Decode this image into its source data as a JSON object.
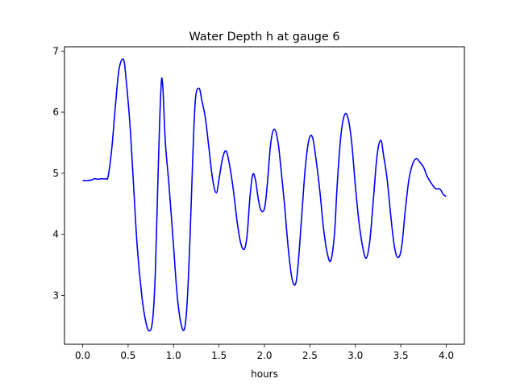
{
  "chart_data": {
    "type": "line",
    "title": "Water Depth h at gauge 6",
    "xlabel": "hours",
    "ylabel": "",
    "xlim": [
      -0.2,
      4.2
    ],
    "ylim": [
      2.2,
      7.07
    ],
    "xticks": [
      0.0,
      0.5,
      1.0,
      1.5,
      2.0,
      2.5,
      3.0,
      3.5,
      4.0
    ],
    "xtick_labels": [
      "0.0",
      "0.5",
      "1.0",
      "1.5",
      "2.0",
      "2.5",
      "3.0",
      "3.5",
      "4.0"
    ],
    "yticks": [
      3,
      4,
      5,
      6,
      7
    ],
    "ytick_labels": [
      "3",
      "4",
      "5",
      "6",
      "7"
    ],
    "grid": false,
    "series": [
      {
        "color": "#0000ff",
        "x": [
          0.0,
          0.05,
          0.1,
          0.13,
          0.17,
          0.2,
          0.25,
          0.28,
          0.32,
          0.36,
          0.4,
          0.45,
          0.48,
          0.52,
          0.56,
          0.6,
          0.65,
          0.69,
          0.73,
          0.77,
          0.8,
          0.83,
          0.86,
          0.88,
          0.91,
          0.95,
          1.0,
          1.04,
          1.08,
          1.12,
          1.15,
          1.18,
          1.21,
          1.24,
          1.28,
          1.31,
          1.35,
          1.39,
          1.43,
          1.47,
          1.5,
          1.54,
          1.58,
          1.62,
          1.66,
          1.7,
          1.74,
          1.78,
          1.81,
          1.84,
          1.87,
          1.9,
          1.93,
          1.96,
          2.0,
          2.03,
          2.07,
          2.11,
          2.15,
          2.18,
          2.22,
          2.26,
          2.3,
          2.34,
          2.37,
          2.41,
          2.45,
          2.49,
          2.53,
          2.57,
          2.61,
          2.65,
          2.69,
          2.73,
          2.77,
          2.8,
          2.84,
          2.88,
          2.92,
          2.96,
          3.0,
          3.04,
          3.08,
          3.12,
          3.16,
          3.2,
          3.24,
          3.28,
          3.31,
          3.35,
          3.39,
          3.43,
          3.47,
          3.51,
          3.55,
          3.59,
          3.63,
          3.67,
          3.71,
          3.75,
          3.79,
          3.83,
          3.88,
          3.93,
          3.97,
          4.0
        ],
        "values": [
          4.88,
          4.88,
          4.89,
          4.91,
          4.9,
          4.91,
          4.91,
          4.95,
          5.4,
          6.1,
          6.7,
          6.86,
          6.5,
          5.8,
          4.8,
          3.8,
          3.0,
          2.6,
          2.42,
          2.6,
          3.4,
          5.0,
          6.35,
          6.45,
          5.5,
          4.8,
          3.8,
          3.0,
          2.55,
          2.45,
          2.9,
          3.9,
          5.2,
          6.2,
          6.39,
          6.2,
          5.9,
          5.4,
          4.9,
          4.68,
          4.9,
          5.25,
          5.36,
          5.1,
          4.7,
          4.2,
          3.85,
          3.76,
          4.0,
          4.6,
          4.97,
          4.9,
          4.6,
          4.4,
          4.42,
          4.8,
          5.5,
          5.72,
          5.5,
          5.1,
          4.5,
          3.8,
          3.3,
          3.18,
          3.5,
          4.3,
          5.1,
          5.55,
          5.58,
          5.2,
          4.7,
          4.1,
          3.7,
          3.57,
          4.0,
          4.8,
          5.6,
          5.95,
          5.9,
          5.5,
          4.8,
          4.2,
          3.8,
          3.61,
          3.9,
          4.6,
          5.3,
          5.54,
          5.3,
          4.9,
          4.3,
          3.8,
          3.62,
          3.8,
          4.4,
          4.9,
          5.15,
          5.24,
          5.18,
          5.1,
          4.95,
          4.85,
          4.75,
          4.74,
          4.65,
          4.62
        ]
      }
    ]
  }
}
